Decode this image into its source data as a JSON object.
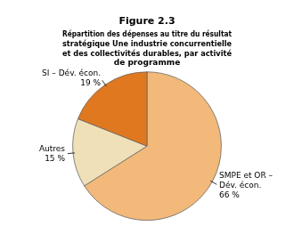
{
  "chart_data": {
    "type": "pie",
    "title": "Figure 2.3",
    "subtitle": "Répartition des dépenses au titre du résultat\nstratégique Une industrie concurrentielle\net des collectivités durables, par activité\nde programme",
    "categories": [
      "SMPE et OR –\nDév. écon.",
      "Autres",
      "SI – Dév. écon."
    ],
    "values": [
      66,
      15,
      19
    ],
    "value_labels": [
      "66 %",
      "15 %",
      "19 %"
    ],
    "colors": [
      "#F2B97A",
      "#F0E0B8",
      "#E07820"
    ],
    "data_labels": true,
    "legend": false
  }
}
